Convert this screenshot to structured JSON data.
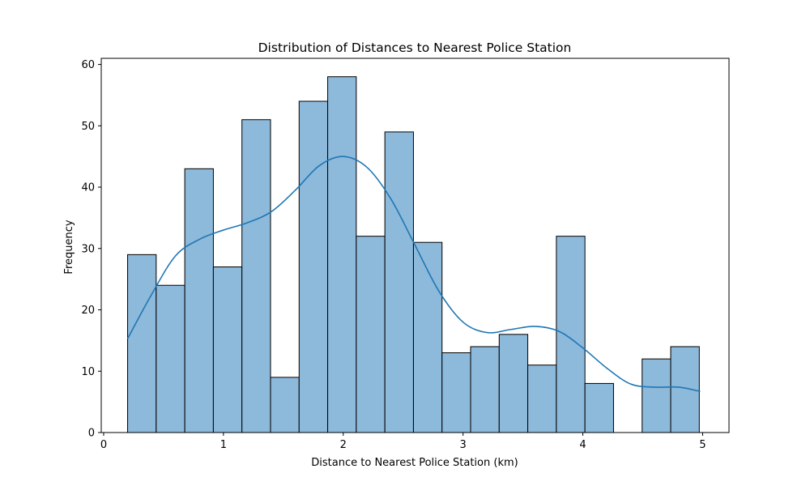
{
  "chart_data": {
    "type": "bar",
    "title": "Distribution of Distances to Nearest Police Station",
    "xlabel": "Distance to Nearest Police Station (km)",
    "ylabel": "Frequency",
    "xlim": [
      -0.02,
      5.22
    ],
    "ylim": [
      0,
      61
    ],
    "xticks": [
      0,
      1,
      2,
      3,
      4,
      5
    ],
    "yticks": [
      0,
      10,
      20,
      30,
      40,
      50,
      60
    ],
    "bins": {
      "start": 0.2,
      "width": 0.2386,
      "values": [
        29,
        24,
        43,
        27,
        51,
        9,
        54,
        58,
        32,
        49,
        31,
        13,
        14,
        16,
        11,
        32,
        8,
        0,
        12,
        14
      ]
    },
    "kde": {
      "x": [
        0.2,
        0.4,
        0.6,
        0.8,
        1.0,
        1.2,
        1.4,
        1.6,
        1.8,
        2.0,
        2.2,
        2.4,
        2.6,
        2.8,
        3.0,
        3.2,
        3.4,
        3.6,
        3.8,
        4.0,
        4.2,
        4.4,
        4.6,
        4.8,
        4.98
      ],
      "y": [
        15.3,
        22.5,
        28.8,
        31.5,
        33,
        34.2,
        36,
        39.5,
        43.5,
        45,
        43.2,
        38,
        30.5,
        23,
        18,
        16.3,
        16.8,
        17.3,
        16.5,
        13.8,
        10.5,
        7.9,
        7.4,
        7.4,
        6.7
      ]
    },
    "grid": false,
    "colors": {
      "bar_fill": "#8db9db",
      "bar_edge": "#000000",
      "kde_line": "#1f77b4",
      "axis": "#000000"
    }
  }
}
